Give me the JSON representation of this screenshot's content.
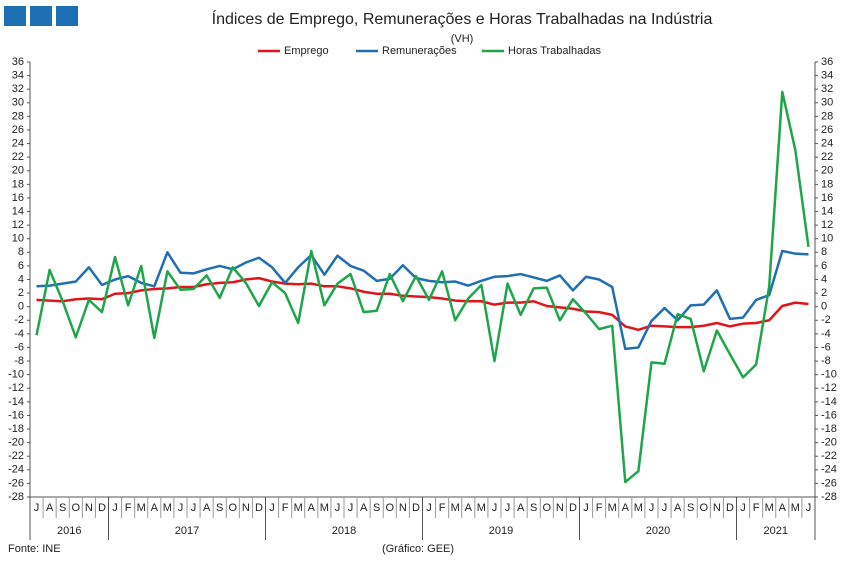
{
  "chart_data": {
    "type": "line",
    "title": "Índices de Emprego, Remunerações e Horas Trabalhadas na Indústria",
    "subtitle": "(VH)",
    "source": "Fonte: INE",
    "credit": "(Gráfico: GEE)",
    "categories": [
      "J",
      "A",
      "S",
      "O",
      "N",
      "D",
      "J",
      "F",
      "M",
      "A",
      "M",
      "J",
      "J",
      "A",
      "S",
      "O",
      "N",
      "D",
      "J",
      "F",
      "M",
      "A",
      "M",
      "J",
      "J",
      "A",
      "S",
      "O",
      "N",
      "D",
      "J",
      "F",
      "M",
      "A",
      "M",
      "J",
      "J",
      "A",
      "S",
      "O",
      "N",
      "D",
      "J",
      "F",
      "M",
      "A",
      "M",
      "J",
      "J",
      "A",
      "S",
      "O",
      "N",
      "D",
      "J",
      "F",
      "M",
      "A",
      "M",
      "J"
    ],
    "x_groups": [
      {
        "label": "2016",
        "span": 6
      },
      {
        "label": "2017",
        "span": 12
      },
      {
        "label": "2018",
        "span": 12
      },
      {
        "label": "2019",
        "span": 12
      },
      {
        "label": "2020",
        "span": 12
      },
      {
        "label": "2021",
        "span": 6
      }
    ],
    "series": [
      {
        "name": "Emprego",
        "color": "#e2141b",
        "values": [
          1.0,
          0.9,
          0.8,
          1.1,
          1.2,
          1.1,
          1.9,
          2.0,
          2.4,
          2.6,
          2.7,
          2.9,
          2.9,
          3.3,
          3.5,
          3.6,
          4.0,
          4.2,
          3.7,
          3.4,
          3.3,
          3.4,
          3.0,
          3.0,
          2.7,
          2.2,
          1.9,
          1.9,
          1.6,
          1.5,
          1.4,
          1.2,
          0.9,
          0.8,
          0.8,
          0.3,
          0.6,
          0.6,
          0.8,
          0.1,
          -0.1,
          -0.3,
          -0.7,
          -0.8,
          -1.2,
          -2.9,
          -3.4,
          -2.8,
          -2.9,
          -3.0,
          -3.0,
          -2.8,
          -2.4,
          -2.9,
          -2.5,
          -2.4,
          -2.0,
          0.1,
          0.6,
          0.4
        ]
      },
      {
        "name": "Remunerações",
        "color": "#1f6fb4",
        "values": [
          3.0,
          3.1,
          3.4,
          3.7,
          5.8,
          3.2,
          4.0,
          4.5,
          3.5,
          3.0,
          8.0,
          5.0,
          4.9,
          5.5,
          6.0,
          5.5,
          6.5,
          7.2,
          5.8,
          3.5,
          5.8,
          7.6,
          4.7,
          7.5,
          6.0,
          5.3,
          3.8,
          4.1,
          6.1,
          4.2,
          3.8,
          3.6,
          3.7,
          3.1,
          3.8,
          4.4,
          4.5,
          4.8,
          4.3,
          3.8,
          4.6,
          2.4,
          4.4,
          4.0,
          2.9,
          -6.2,
          -6.0,
          -2.1,
          -0.2,
          -2.0,
          0.2,
          0.3,
          2.4,
          -1.8,
          -1.6,
          1.0,
          1.7,
          8.2,
          7.8,
          7.7
        ]
      },
      {
        "name": "Horas Trabalhadas",
        "color": "#1fa54a",
        "values": [
          -4.2,
          5.4,
          0.8,
          -4.5,
          1.0,
          -0.8,
          7.3,
          0.2,
          6.0,
          -4.6,
          5.2,
          2.5,
          2.6,
          4.6,
          1.3,
          5.8,
          3.5,
          0.1,
          3.6,
          2.0,
          -2.4,
          8.2,
          0.2,
          3.4,
          4.8,
          -0.8,
          -0.6,
          4.8,
          0.8,
          4.5,
          1.0,
          5.2,
          -2.0,
          1.2,
          3.2,
          -8.0,
          3.4,
          -1.2,
          2.7,
          2.8,
          -2.0,
          1.1,
          -1.0,
          -3.3,
          -2.8,
          -25.8,
          -24.2,
          -8.2,
          -8.4,
          -1.1,
          -1.8,
          -9.5,
          -3.5,
          -7.0,
          -10.4,
          -8.5,
          3.0,
          31.6,
          23.0,
          8.8
        ]
      }
    ],
    "ylim": [
      -28,
      36
    ],
    "yticks": [
      -28,
      -26,
      -24,
      -22,
      -20,
      -18,
      -16,
      -14,
      -12,
      -10,
      -8,
      -6,
      -4,
      -2,
      0,
      2,
      4,
      6,
      8,
      10,
      12,
      14,
      16,
      18,
      20,
      22,
      24,
      26,
      28,
      30,
      32,
      34,
      36
    ],
    "y2lim": [
      -28,
      36
    ],
    "y2ticks": [
      -28,
      -26,
      -24,
      -22,
      -20,
      -18,
      -16,
      -14,
      -12,
      -10,
      -8,
      -6,
      -4,
      -2,
      0,
      2,
      4,
      6,
      8,
      10,
      12,
      14,
      16,
      18,
      20,
      22,
      24,
      26,
      28,
      30,
      32,
      34,
      36
    ],
    "grid": false,
    "legend": "top"
  }
}
